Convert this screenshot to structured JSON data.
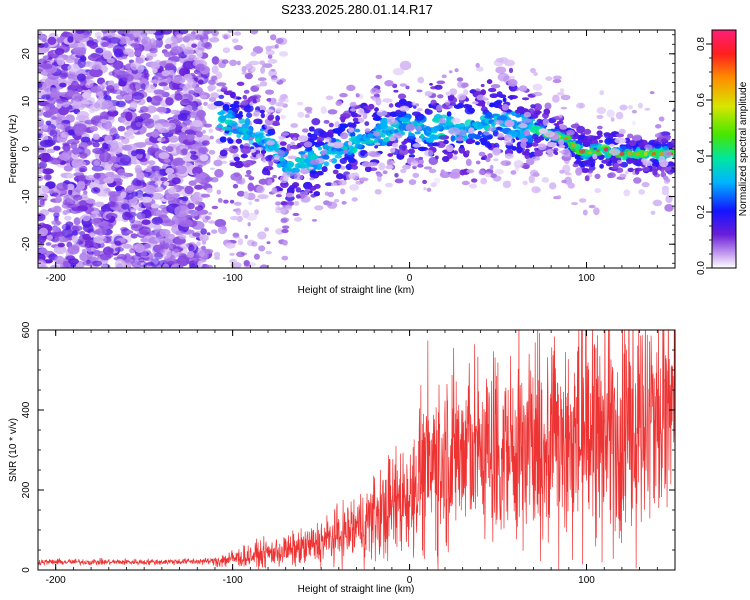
{
  "title": "S233.2025.280.01.14.R17",
  "chart_data": [
    {
      "type": "heatmap",
      "xlabel": "Height of straight line (km)",
      "ylabel": "Frequency (Hz)",
      "xlim": [
        -210,
        150
      ],
      "ylim": [
        -25,
        25
      ],
      "xticks": [
        -200,
        -100,
        0,
        100
      ],
      "yticks": [
        -20,
        -10,
        0,
        10,
        20
      ],
      "colorbar": {
        "label": "Normalized spectral amplitude",
        "range": [
          0,
          0.85
        ],
        "ticks": [
          0.0,
          0.2,
          0.4,
          0.6,
          0.8
        ]
      },
      "ridge": {
        "x": [
          -105,
          -95,
          -85,
          -75,
          -68,
          -60,
          -50,
          -40,
          -30,
          -20,
          -10,
          0,
          10,
          20,
          30,
          40,
          50,
          60,
          70,
          80,
          90,
          95,
          100,
          110,
          120,
          130,
          140,
          150
        ],
        "y": [
          6,
          4,
          3,
          0,
          -5,
          -3,
          -2,
          0,
          2,
          3,
          4,
          5,
          4,
          5,
          4,
          5,
          6,
          5,
          4,
          3,
          2,
          0,
          -1,
          0,
          -1,
          -1,
          -1,
          -1
        ]
      }
    },
    {
      "type": "line",
      "xlabel": "Height of straight line (km)",
      "ylabel": "SNR (10 * v/v)",
      "xlim": [
        -210,
        150
      ],
      "ylim": [
        0,
        600
      ],
      "xticks": [
        -200,
        -100,
        0,
        100
      ],
      "yticks": [
        0,
        200,
        400,
        600
      ],
      "color": "#ee3333",
      "envelope": {
        "x": [
          -210,
          -150,
          -110,
          -90,
          -60,
          -40,
          -20,
          0,
          15,
          30,
          50,
          80,
          100,
          120,
          150
        ],
        "mean": [
          20,
          20,
          22,
          35,
          55,
          85,
          130,
          190,
          280,
          300,
          300,
          320,
          340,
          360,
          390
        ]
      }
    }
  ]
}
